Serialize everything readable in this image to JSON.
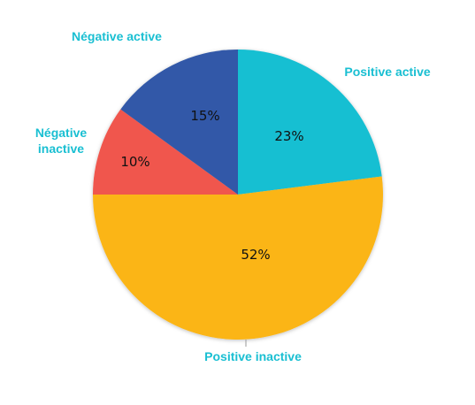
{
  "chart_data": {
    "type": "pie",
    "title": "",
    "slices": [
      {
        "label": "Positive active",
        "value": 23,
        "label_text": "23%",
        "color": "#19BFD2"
      },
      {
        "label": "Positive inactive",
        "value": 52,
        "label_text": "52%",
        "color": "#FBB517"
      },
      {
        "label": "Négative inactive",
        "label_lines": [
          "Négative",
          "inactive"
        ],
        "value": 10,
        "label_text": "10%",
        "color": "#F0564D"
      },
      {
        "label": "Négative active",
        "value": 15,
        "label_text": "15%",
        "color": "#3059A8"
      }
    ],
    "start": "12 o'clock",
    "direction": "clockwise",
    "category_label_color": "#19BFD2",
    "legend": "none"
  }
}
